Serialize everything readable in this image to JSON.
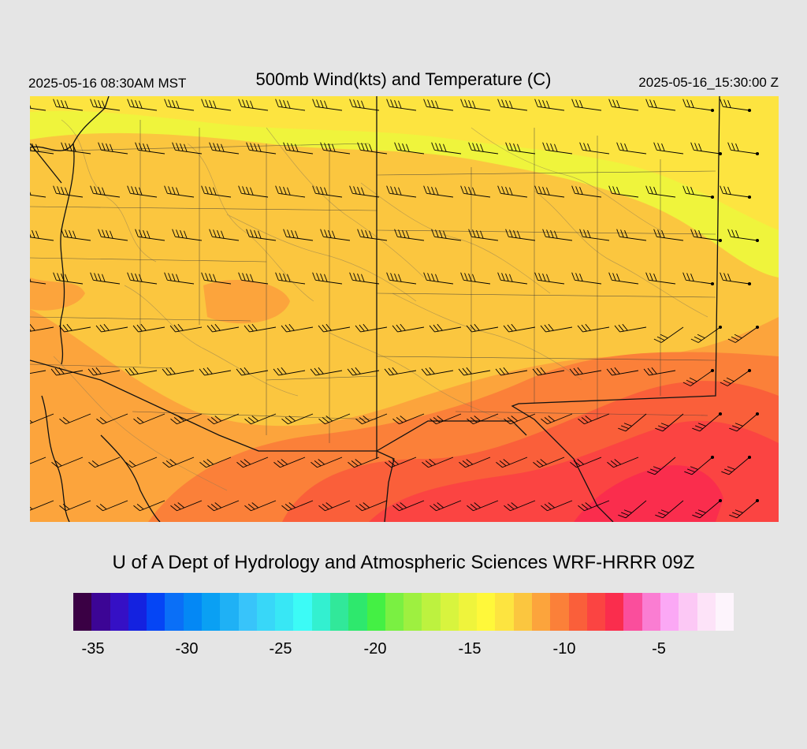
{
  "header": {
    "local_time": "2025-05-16 08:30AM MST",
    "title": "500mb Wind(kts) and Temperature (C)",
    "valid_time": "2025-05-16_15:30:00 Z"
  },
  "footer": {
    "credit": "U of A Dept of Hydrology and Atmospheric Sciences WRF-HRRR 09Z"
  },
  "legend": {
    "ticks": [
      "-35",
      "-30",
      "-25",
      "-20",
      "-15",
      "-10",
      "-5"
    ],
    "colors": [
      "#3a0044",
      "#3c0595",
      "#3510c5",
      "#1422e0",
      "#0545f5",
      "#0a6ff7",
      "#0488f5",
      "#0aa0f3",
      "#1fb1f5",
      "#38c4fa",
      "#38d7f8",
      "#38e7f5",
      "#3cfbf6",
      "#33f0d0",
      "#31e89a",
      "#2ee86d",
      "#44f044",
      "#7af042",
      "#9ef040",
      "#bdf23f",
      "#d8f43e",
      "#eff43c",
      "#fff83a",
      "#fde440",
      "#fbc63f",
      "#fca43c",
      "#fb8039",
      "#fa5f3a",
      "#fb4442",
      "#fa2d4d",
      "#fa4e9c",
      "#fa7dd2",
      "#fba8f5",
      "#fcc8f5",
      "#fde3f8",
      "#fdf4fc"
    ]
  },
  "map": {
    "ocean_color": "#cfd4d4",
    "palette": {
      "t13": "#fde440",
      "t12": "#fbc63f",
      "t11": "#fca43c",
      "t10": "#fb8039",
      "t9": "#fa5f3a",
      "t8": "#fb4442",
      "t7": "#fa2d4d",
      "cold": "#eff43c"
    }
  }
}
